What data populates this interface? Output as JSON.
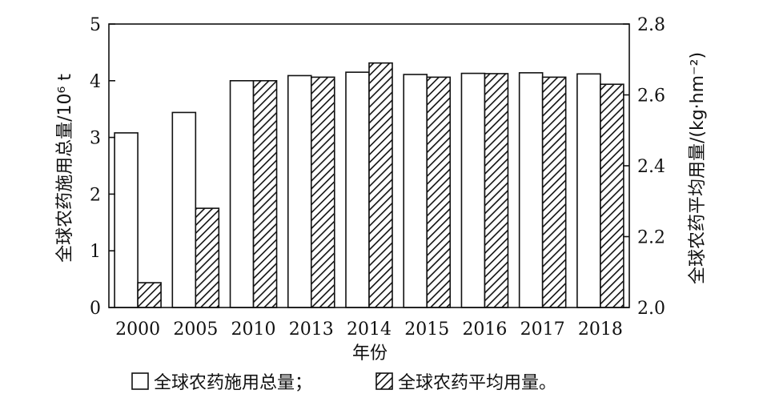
{
  "chart_data": {
    "type": "bar",
    "categories": [
      "2000",
      "2005",
      "2010",
      "2013",
      "2014",
      "2015",
      "2016",
      "2017",
      "2018"
    ],
    "xlabel": "年份",
    "ylabel_left": "全球农药施用总量/10⁶ t",
    "ylabel_right": "全球农药平均用量/(kg·hm⁻²)",
    "ylim_left": [
      0,
      5
    ],
    "ylim_right": [
      2.0,
      2.8
    ],
    "yticks_left": [
      "0",
      "1",
      "2",
      "3",
      "4",
      "5"
    ],
    "yticks_right": [
      "2.0",
      "2.2",
      "2.4",
      "2.6",
      "2.8"
    ],
    "grid": false,
    "legend_position": "bottom",
    "series": [
      {
        "name": "全球农药施用总量；",
        "axis": "left",
        "fill": "white",
        "values": [
          3.08,
          3.44,
          4.0,
          4.09,
          4.15,
          4.11,
          4.13,
          4.14,
          4.12
        ]
      },
      {
        "name": "全球农药平均用量。",
        "axis": "right",
        "fill": "hatch",
        "values": [
          2.07,
          2.28,
          2.64,
          2.65,
          2.69,
          2.65,
          2.66,
          2.65,
          2.63
        ]
      }
    ],
    "colors": {
      "stroke": "#111111",
      "background": "#ffffff"
    }
  }
}
